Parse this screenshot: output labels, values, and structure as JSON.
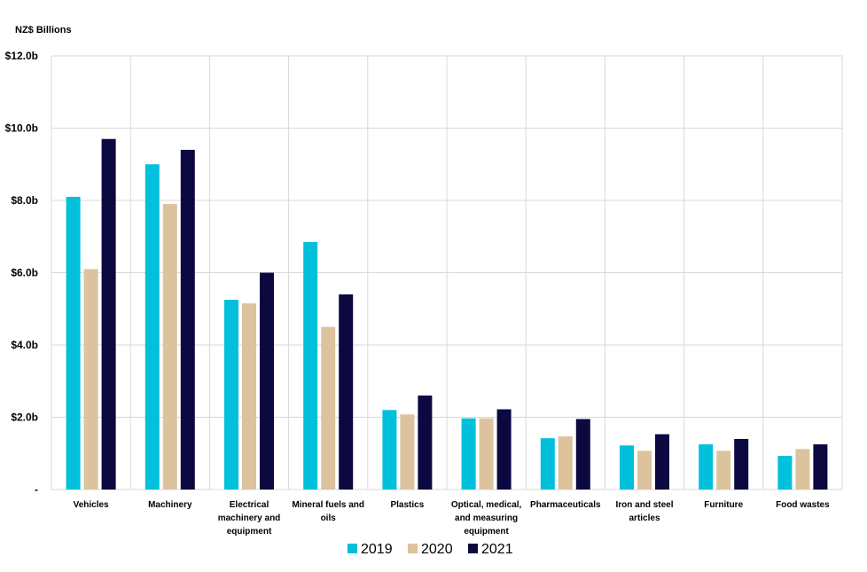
{
  "chart_data": {
    "type": "bar",
    "unit_label": "NZ$ Billions",
    "categories": [
      [
        "Vehicles"
      ],
      [
        "Machinery"
      ],
      [
        "Electrical",
        "machinery and",
        "equipment"
      ],
      [
        "Mineral fuels and",
        "oils"
      ],
      [
        "Plastics"
      ],
      [
        "Optical, medical,",
        "and measuring",
        "equipment"
      ],
      [
        "Pharmaceuticals"
      ],
      [
        "Iron and steel",
        "articles"
      ],
      [
        "Furniture"
      ],
      [
        "Food wastes"
      ]
    ],
    "series": [
      {
        "name": "2019",
        "color": "#00c0dc",
        "values": [
          8.1,
          9.0,
          5.25,
          6.85,
          2.2,
          1.97,
          1.42,
          1.22,
          1.25,
          0.93
        ]
      },
      {
        "name": "2020",
        "color": "#dcc39e",
        "values": [
          6.1,
          7.9,
          5.15,
          4.5,
          2.08,
          1.97,
          1.47,
          1.07,
          1.07,
          1.12
        ]
      },
      {
        "name": "2021",
        "color": "#0c0940",
        "values": [
          9.7,
          9.4,
          6.0,
          5.4,
          2.6,
          2.22,
          1.95,
          1.53,
          1.4,
          1.25
        ]
      }
    ],
    "ylim": [
      0,
      12
    ],
    "yticks": [
      0,
      2,
      4,
      6,
      8,
      10,
      12
    ],
    "ytick_labels": [
      "-",
      "$2.0b",
      "$4.0b",
      "$6.0b",
      "$8.0b",
      "$10.0b",
      "$12.0b"
    ],
    "grid": true,
    "legend_position": "bottom"
  }
}
